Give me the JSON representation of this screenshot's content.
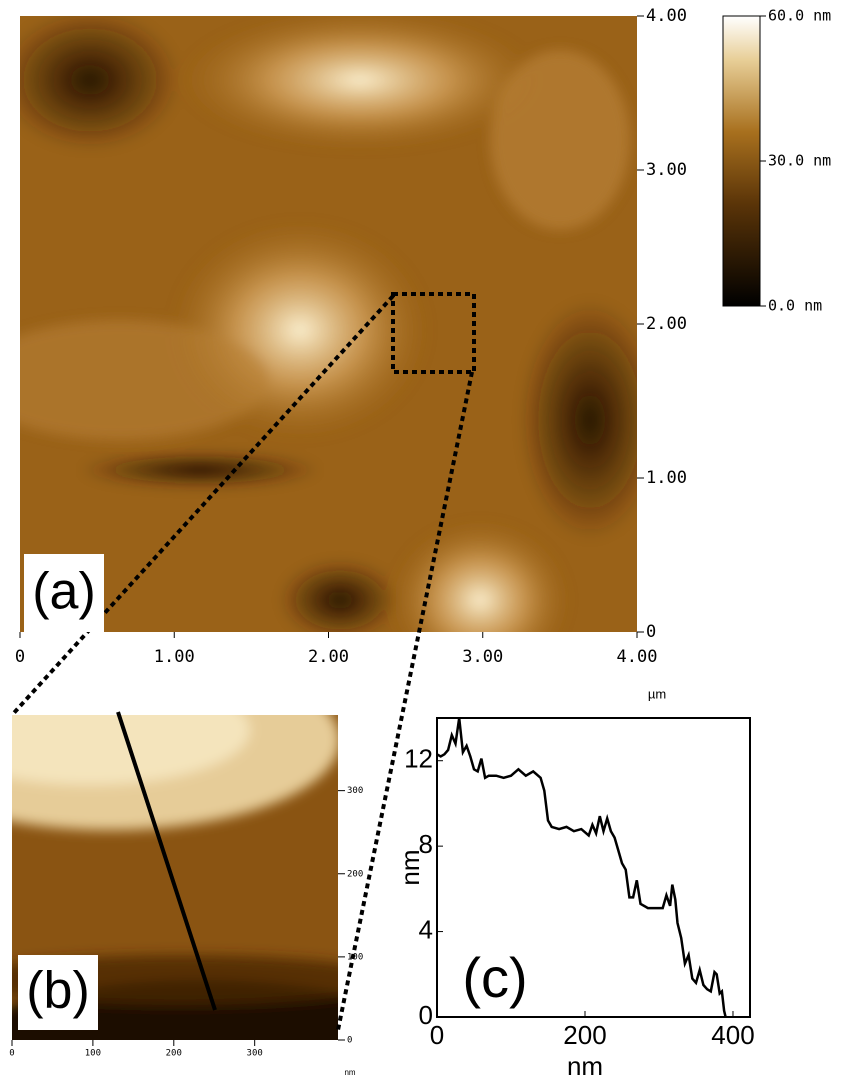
{
  "chart_data": [
    {
      "type": "image",
      "label": "(a)",
      "xlabel": "µm",
      "xlim": [
        0,
        4
      ],
      "ylim": [
        0,
        4
      ],
      "xticks": [
        0,
        {
          "value": 1,
          "label": "1.00"
        },
        {
          "value": 2,
          "label": "2.00"
        },
        {
          "value": 3,
          "label": "3.00"
        },
        {
          "value": 4,
          "label": "4.00"
        }
      ],
      "yticks": [
        0,
        {
          "value": 1,
          "label": "1.00"
        },
        {
          "value": 2,
          "label": "2.00"
        },
        {
          "value": 3,
          "label": "3.00"
        },
        {
          "value": 4,
          "label": "4.00"
        }
      ],
      "colorbar": {
        "clim": [
          0,
          60
        ],
        "ticks": [
          {
            "value": 0,
            "label": "0.0 nm"
          },
          {
            "value": 30,
            "label": "30.0 nm"
          },
          {
            "value": 60,
            "label": "60.0 nm"
          }
        ]
      }
    },
    {
      "type": "image",
      "label": "(b)",
      "xlabel": "nm",
      "xlim": [
        0,
        403
      ],
      "ylim": [
        0,
        391
      ],
      "xticks": [
        0,
        100,
        200,
        300
      ],
      "yticks": [
        0,
        100,
        200,
        300
      ]
    },
    {
      "type": "line",
      "label": "(c)",
      "xlabel": "nm",
      "ylabel": "nm",
      "color": "#000000",
      "xlim": [
        0,
        423
      ],
      "ylim": [
        0,
        14
      ],
      "xticks": [
        0,
        200,
        400
      ],
      "yticks": [
        0,
        4,
        8,
        12
      ],
      "x": [
        0,
        5,
        10,
        15,
        20,
        25,
        30,
        35,
        40,
        45,
        50,
        55,
        60,
        65,
        70,
        80,
        90,
        100,
        110,
        120,
        130,
        140,
        145,
        150,
        155,
        165,
        175,
        185,
        195,
        205,
        210,
        215,
        220,
        225,
        230,
        235,
        240,
        245,
        250,
        255,
        260,
        265,
        270,
        275,
        285,
        295,
        305,
        310,
        315,
        318,
        322,
        325,
        330,
        335,
        340,
        345,
        350,
        355,
        360,
        365,
        370,
        375,
        378,
        382,
        385,
        388,
        390
      ],
      "values": [
        12.3,
        12.2,
        12.3,
        12.5,
        13.2,
        12.8,
        14,
        12.4,
        12.7,
        12.2,
        11.6,
        11.5,
        12.1,
        11.2,
        11.3,
        11.3,
        11.2,
        11.3,
        11.6,
        11.3,
        11.5,
        11.2,
        10.6,
        9.2,
        8.9,
        8.8,
        8.9,
        8.7,
        8.8,
        8.5,
        9.0,
        8.6,
        9.4,
        8.7,
        9.3,
        8.7,
        8.4,
        7.8,
        7.2,
        6.9,
        5.6,
        5.6,
        6.4,
        5.3,
        5.1,
        5.1,
        5.1,
        5.7,
        5.2,
        6.2,
        5.5,
        4.4,
        3.7,
        2.5,
        2.9,
        1.8,
        1.6,
        2.2,
        1.5,
        1.3,
        1.2,
        2.1,
        2.0,
        1.1,
        1.2,
        0.3,
        0
      ]
    }
  ]
}
